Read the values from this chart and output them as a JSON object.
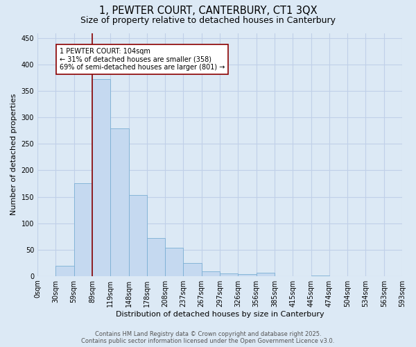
{
  "title": "1, PEWTER COURT, CANTERBURY, CT1 3QX",
  "subtitle": "Size of property relative to detached houses in Canterbury",
  "xlabel": "Distribution of detached houses by size in Canterbury",
  "ylabel": "Number of detached properties",
  "bar_values": [
    0,
    19,
    176,
    372,
    280,
    153,
    72,
    54,
    25,
    9,
    5,
    4,
    6,
    0,
    0,
    1,
    0,
    0,
    0,
    0
  ],
  "bin_labels": [
    "0sqm",
    "30sqm",
    "59sqm",
    "89sqm",
    "119sqm",
    "148sqm",
    "178sqm",
    "208sqm",
    "237sqm",
    "267sqm",
    "297sqm",
    "326sqm",
    "356sqm",
    "385sqm",
    "415sqm",
    "445sqm",
    "474sqm",
    "504sqm",
    "534sqm",
    "563sqm",
    "593sqm"
  ],
  "bar_color": "#c5d9f0",
  "bar_edge_color": "#7bafd4",
  "vline_x": 3,
  "vline_color": "#8b0000",
  "annotation_text": "1 PEWTER COURT: 104sqm\n← 31% of detached houses are smaller (358)\n69% of semi-detached houses are larger (801) →",
  "ylim": [
    0,
    460
  ],
  "yticks": [
    0,
    50,
    100,
    150,
    200,
    250,
    300,
    350,
    400,
    450
  ],
  "background_color": "#dce9f5",
  "grid_color": "#c0d0e8",
  "footer_text": "Contains HM Land Registry data © Crown copyright and database right 2025.\nContains public sector information licensed under the Open Government Licence v3.0.",
  "title_fontsize": 10.5,
  "subtitle_fontsize": 9,
  "annot_fontsize": 7,
  "tick_fontsize": 7,
  "ylabel_fontsize": 8,
  "xlabel_fontsize": 8,
  "footer_fontsize": 6
}
